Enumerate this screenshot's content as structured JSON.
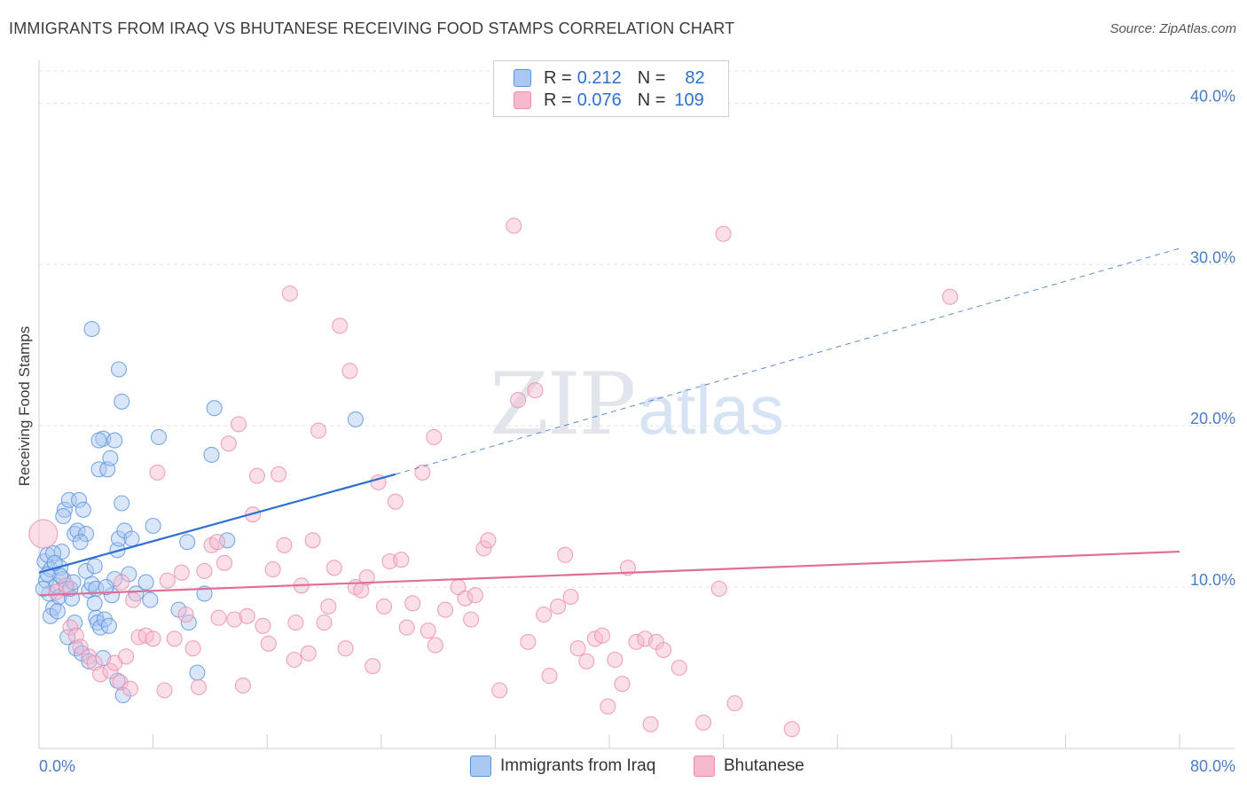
{
  "title": "IMMIGRANTS FROM IRAQ VS BHUTANESE RECEIVING FOOD STAMPS CORRELATION CHART",
  "source": "Source: ZipAtlas.com",
  "watermark": {
    "zip": "ZIP",
    "atlas": "atlas"
  },
  "legend": {
    "rows": [
      {
        "r_label": "R =",
        "r_value": "0.212",
        "n_label": "N =",
        "n_value": "82",
        "color": "#aac8f2"
      },
      {
        "r_label": "R =",
        "r_value": "0.076",
        "n_label": "N =",
        "n_value": "109",
        "color": "#f6b9cc"
      }
    ]
  },
  "chart_data": {
    "type": "scatter",
    "xlabel": "",
    "ylabel": "Receiving Food Stamps",
    "xlim": [
      0,
      80
    ],
    "ylim": [
      0,
      42
    ],
    "x_ticks": [
      {
        "value": 0,
        "label": "0.0%"
      },
      {
        "value": 80,
        "label": "80.0%"
      }
    ],
    "y_ticks": [
      {
        "value": 10,
        "label": "10.0%"
      },
      {
        "value": 20,
        "label": "20.0%"
      },
      {
        "value": 30,
        "label": "30.0%"
      },
      {
        "value": 40,
        "label": "40.0%"
      }
    ],
    "grid": true,
    "legend_position": "bottom",
    "series": [
      {
        "name": "Immigrants from Iraq",
        "color": "#5b93df",
        "fill": "#aac8f2",
        "trend": {
          "x0": 0,
          "y0": 10.9,
          "x1": 25,
          "y1": 17.0,
          "dashed_to_x": 80,
          "dashed_to_y": 31.0,
          "color": "#2e6fd0"
        },
        "points": [
          [
            0.4,
            11.6
          ],
          [
            0.5,
            10.4
          ],
          [
            0.6,
            12.0
          ],
          [
            0.7,
            9.6
          ],
          [
            0.8,
            11.1
          ],
          [
            1.0,
            8.7
          ],
          [
            1.2,
            10.1
          ],
          [
            1.4,
            9.4
          ],
          [
            1.5,
            11.2
          ],
          [
            1.6,
            12.2
          ],
          [
            1.7,
            10.5
          ],
          [
            1.9,
            9.9
          ],
          [
            1.0,
            12.1
          ],
          [
            0.8,
            8.2
          ],
          [
            1.3,
            8.5
          ],
          [
            1.8,
            14.8
          ],
          [
            1.7,
            14.4
          ],
          [
            2.1,
            15.4
          ],
          [
            2.5,
            13.3
          ],
          [
            2.7,
            13.5
          ],
          [
            2.8,
            15.4
          ],
          [
            3.1,
            14.8
          ],
          [
            3.3,
            13.3
          ],
          [
            3.5,
            9.8
          ],
          [
            3.7,
            10.2
          ],
          [
            3.9,
            9.0
          ],
          [
            4.0,
            8.1
          ],
          [
            4.1,
            7.8
          ],
          [
            4.3,
            7.5
          ],
          [
            4.6,
            8.0
          ],
          [
            4.9,
            7.6
          ],
          [
            5.1,
            9.5
          ],
          [
            5.3,
            10.5
          ],
          [
            5.5,
            12.3
          ],
          [
            5.6,
            13.0
          ],
          [
            5.8,
            15.2
          ],
          [
            6.0,
            13.5
          ],
          [
            6.3,
            10.8
          ],
          [
            6.5,
            13.0
          ],
          [
            2.0,
            6.9
          ],
          [
            2.6,
            6.2
          ],
          [
            3.0,
            5.9
          ],
          [
            3.5,
            5.4
          ],
          [
            4.5,
            5.6
          ],
          [
            5.5,
            4.2
          ],
          [
            4.2,
            17.3
          ],
          [
            4.8,
            17.3
          ],
          [
            4.5,
            19.2
          ],
          [
            4.2,
            19.1
          ],
          [
            5.0,
            18.0
          ],
          [
            5.3,
            19.1
          ],
          [
            5.8,
            21.5
          ],
          [
            5.6,
            23.5
          ],
          [
            3.7,
            26.0
          ],
          [
            7.5,
            10.3
          ],
          [
            7.8,
            9.2
          ],
          [
            8.0,
            13.8
          ],
          [
            8.4,
            19.3
          ],
          [
            9.8,
            8.6
          ],
          [
            10.5,
            7.8
          ],
          [
            10.4,
            12.8
          ],
          [
            11.6,
            9.6
          ],
          [
            12.3,
            21.1
          ],
          [
            12.1,
            18.2
          ],
          [
            13.2,
            12.9
          ],
          [
            11.1,
            4.7
          ],
          [
            5.9,
            3.3
          ],
          [
            22.2,
            20.4
          ],
          [
            2.5,
            7.8
          ],
          [
            2.3,
            9.3
          ],
          [
            1.5,
            10.7
          ],
          [
            2.9,
            12.8
          ],
          [
            3.3,
            11.0
          ],
          [
            4.0,
            9.9
          ],
          [
            0.3,
            9.9
          ],
          [
            0.6,
            10.8
          ],
          [
            1.1,
            11.5
          ],
          [
            2.2,
            9.9
          ],
          [
            2.4,
            10.3
          ],
          [
            6.8,
            9.6
          ],
          [
            3.9,
            11.3
          ],
          [
            4.7,
            10.0
          ]
        ]
      },
      {
        "name": "Bhutanese",
        "color": "#eb8db0",
        "fill": "#f6b9cc",
        "trend": {
          "x0": 0,
          "y0": 9.5,
          "x1": 80,
          "y1": 12.2,
          "color": "#e06e98"
        },
        "points": [
          [
            0.3,
            13.3
          ],
          [
            1.2,
            9.7
          ],
          [
            1.9,
            10.1
          ],
          [
            2.2,
            7.5
          ],
          [
            2.6,
            7.0
          ],
          [
            2.9,
            6.3
          ],
          [
            3.5,
            5.7
          ],
          [
            3.9,
            5.3
          ],
          [
            4.3,
            4.6
          ],
          [
            5.0,
            4.8
          ],
          [
            5.3,
            5.3
          ],
          [
            5.7,
            4.1
          ],
          [
            6.1,
            5.7
          ],
          [
            6.4,
            3.7
          ],
          [
            6.6,
            9.2
          ],
          [
            7.0,
            6.9
          ],
          [
            7.5,
            7.0
          ],
          [
            8.0,
            6.8
          ],
          [
            8.3,
            17.1
          ],
          [
            8.8,
            3.6
          ],
          [
            9.0,
            10.4
          ],
          [
            9.5,
            6.8
          ],
          [
            10.0,
            10.9
          ],
          [
            10.3,
            8.3
          ],
          [
            10.8,
            6.2
          ],
          [
            11.2,
            3.8
          ],
          [
            11.6,
            11.0
          ],
          [
            12.1,
            12.6
          ],
          [
            12.5,
            12.8
          ],
          [
            13.0,
            11.5
          ],
          [
            13.3,
            18.9
          ],
          [
            13.7,
            8.0
          ],
          [
            14.0,
            20.1
          ],
          [
            14.3,
            3.9
          ],
          [
            14.6,
            8.2
          ],
          [
            15.0,
            14.5
          ],
          [
            15.3,
            16.9
          ],
          [
            15.7,
            7.6
          ],
          [
            16.1,
            6.5
          ],
          [
            16.4,
            11.1
          ],
          [
            16.8,
            17.0
          ],
          [
            17.2,
            12.6
          ],
          [
            17.6,
            28.2
          ],
          [
            18.0,
            7.8
          ],
          [
            18.4,
            10.1
          ],
          [
            18.9,
            5.9
          ],
          [
            19.2,
            12.9
          ],
          [
            19.6,
            19.7
          ],
          [
            20.0,
            7.8
          ],
          [
            20.3,
            8.8
          ],
          [
            20.7,
            11.2
          ],
          [
            21.1,
            26.2
          ],
          [
            21.5,
            6.2
          ],
          [
            21.8,
            23.4
          ],
          [
            22.2,
            10.0
          ],
          [
            22.6,
            9.8
          ],
          [
            23.0,
            10.6
          ],
          [
            23.4,
            5.1
          ],
          [
            23.8,
            16.5
          ],
          [
            24.2,
            8.8
          ],
          [
            24.6,
            11.6
          ],
          [
            25.0,
            15.3
          ],
          [
            25.4,
            11.7
          ],
          [
            25.8,
            7.5
          ],
          [
            26.2,
            9.0
          ],
          [
            26.9,
            17.1
          ],
          [
            27.3,
            7.3
          ],
          [
            27.7,
            19.3
          ],
          [
            28.5,
            8.6
          ],
          [
            29.4,
            10.0
          ],
          [
            29.9,
            9.3
          ],
          [
            30.3,
            8.0
          ],
          [
            30.6,
            9.5
          ],
          [
            31.2,
            12.4
          ],
          [
            31.5,
            12.9
          ],
          [
            32.3,
            3.6
          ],
          [
            33.3,
            32.4
          ],
          [
            33.6,
            21.6
          ],
          [
            34.3,
            6.6
          ],
          [
            34.8,
            22.2
          ],
          [
            35.4,
            8.3
          ],
          [
            35.8,
            4.5
          ],
          [
            36.4,
            8.8
          ],
          [
            36.9,
            12.0
          ],
          [
            37.3,
            9.4
          ],
          [
            37.8,
            6.2
          ],
          [
            38.4,
            5.4
          ],
          [
            39.0,
            6.8
          ],
          [
            39.5,
            7.0
          ],
          [
            39.9,
            2.6
          ],
          [
            40.4,
            5.5
          ],
          [
            40.9,
            4.0
          ],
          [
            41.3,
            11.2
          ],
          [
            41.9,
            6.6
          ],
          [
            42.5,
            6.8
          ],
          [
            42.9,
            1.5
          ],
          [
            43.3,
            6.6
          ],
          [
            43.8,
            6.1
          ],
          [
            44.9,
            5.0
          ],
          [
            46.6,
            1.6
          ],
          [
            47.7,
            9.9
          ],
          [
            48.0,
            31.9
          ],
          [
            48.8,
            2.8
          ],
          [
            63.9,
            28.0
          ],
          [
            52.8,
            1.2
          ],
          [
            5.8,
            10.3
          ],
          [
            12.6,
            8.1
          ],
          [
            17.9,
            5.5
          ],
          [
            27.8,
            6.4
          ]
        ]
      }
    ]
  }
}
